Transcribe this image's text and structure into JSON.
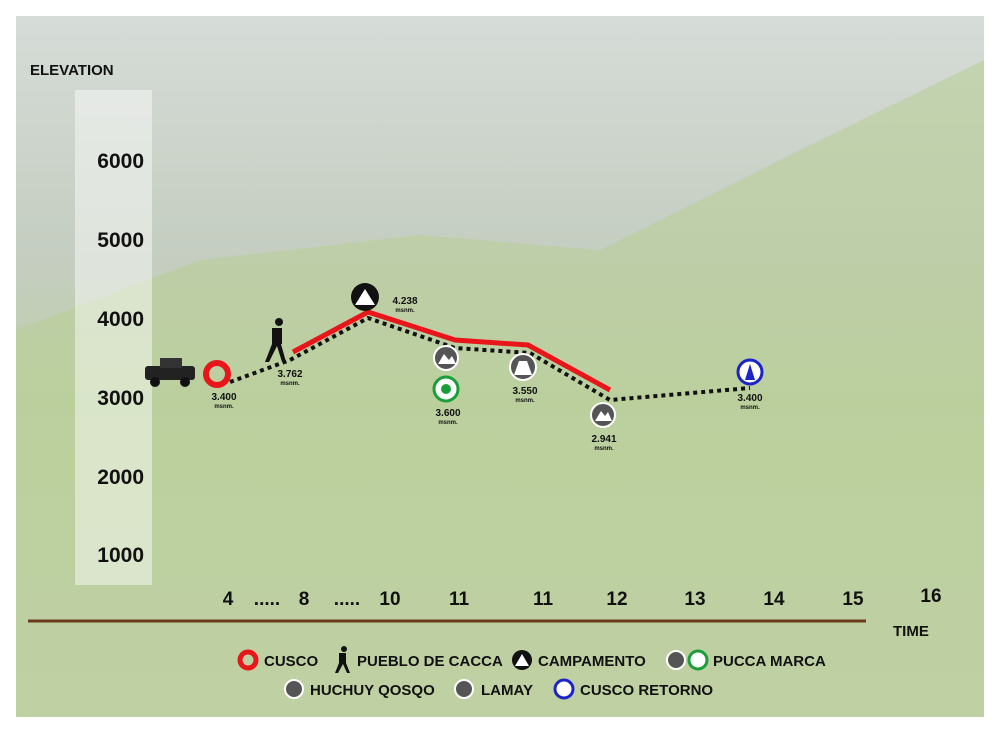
{
  "axis": {
    "y_title": "ELEVATION",
    "y_labels": [
      "6000",
      "5000",
      "4000",
      "3000",
      "2000",
      "1000"
    ],
    "x_title": "TIME",
    "x_labels": [
      "4",
      ".....",
      "8",
      ".....",
      "10",
      "11",
      "11",
      "12",
      "13",
      "14",
      "15",
      "16"
    ]
  },
  "points": [
    {
      "elevation": "3.400",
      "unit": "msnm."
    },
    {
      "elevation": "3.762",
      "unit": "msnm."
    },
    {
      "elevation": "4.238",
      "unit": "msnm."
    },
    {
      "elevation": "3.600",
      "unit": "msnm."
    },
    {
      "elevation": "3.550",
      "unit": "msnm."
    },
    {
      "elevation": "2.941",
      "unit": "msnm."
    },
    {
      "elevation": "3.400",
      "unit": "msnm."
    }
  ],
  "legend": [
    "CUSCO",
    "PUEBLO DE CACCA",
    "CAMPAMENTO",
    "PUCCA MARCA",
    "HUCHUY QOSQO",
    "LAMAY",
    "CUSCO RETORNO"
  ]
}
